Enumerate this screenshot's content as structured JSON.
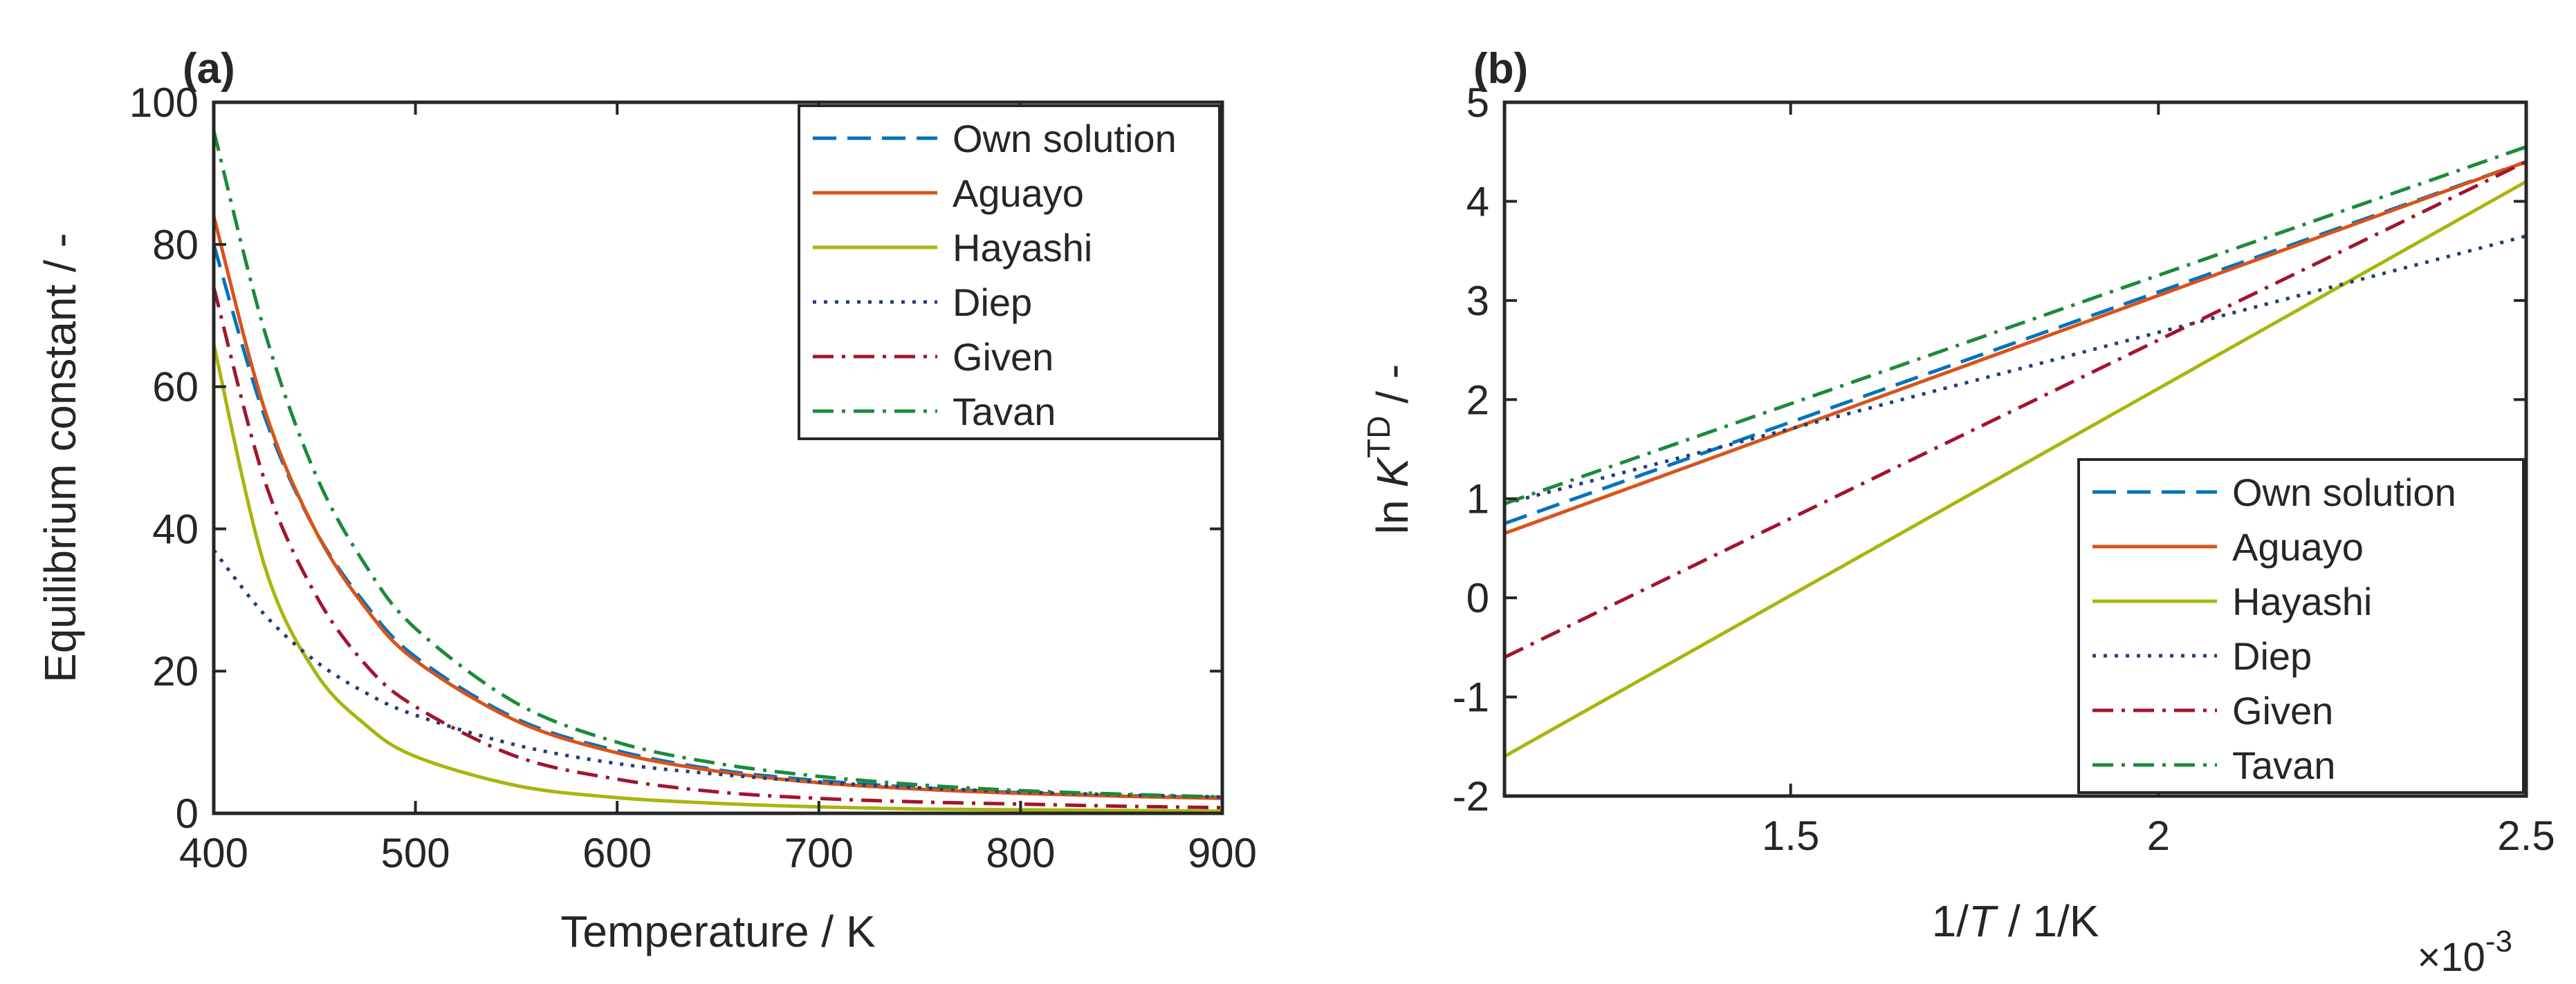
{
  "chart_data": [
    {
      "type": "line",
      "panel_label": "a",
      "title": "",
      "xlabel": "Temperature / K",
      "ylabel": "Equilibrium constant / -",
      "xlim": [
        400,
        900
      ],
      "ylim": [
        0,
        100
      ],
      "xticks": [
        400,
        500,
        600,
        700,
        800,
        900
      ],
      "yticks": [
        0,
        20,
        40,
        60,
        80,
        100
      ],
      "grid": false,
      "legend_position": "top-right",
      "x": [
        400,
        425,
        450,
        475,
        500,
        550,
        600,
        650,
        700,
        750,
        800,
        850,
        900
      ],
      "series": [
        {
          "name": "Own solution",
          "color": "#0072BD",
          "style": "dashed",
          "values": [
            80.0,
            56.0,
            40.0,
            29.5,
            22.0,
            13.3,
            8.8,
            6.1,
            4.6,
            3.6,
            2.9,
            2.5,
            2.2
          ]
        },
        {
          "name": "Aguayo",
          "color": "#D95319",
          "style": "solid",
          "values": [
            84.0,
            57.0,
            40.0,
            29.0,
            21.5,
            13.0,
            8.5,
            5.9,
            4.3,
            3.4,
            2.8,
            2.4,
            2.1
          ]
        },
        {
          "name": "Hayashi",
          "color": "#A8B50D",
          "style": "solid",
          "values": [
            66.0,
            35.0,
            20.0,
            12.5,
            8.0,
            3.9,
            2.2,
            1.4,
            0.9,
            0.6,
            0.5,
            0.4,
            0.3
          ]
        },
        {
          "name": "Diep",
          "color": "#1F3D7A",
          "style": "dotted",
          "values": [
            37.0,
            28.0,
            21.5,
            17.0,
            13.8,
            9.6,
            7.0,
            5.5,
            4.4,
            3.6,
            3.0,
            2.6,
            2.3
          ]
        },
        {
          "name": "Given",
          "color": "#A2142F",
          "style": "dashdot",
          "values": [
            74.0,
            47.0,
            31.0,
            21.0,
            15.0,
            8.0,
            4.8,
            3.0,
            2.1,
            1.6,
            1.3,
            1.0,
            0.8
          ]
        },
        {
          "name": "Tavan",
          "color": "#1B8A3A",
          "style": "dashdot",
          "values": [
            96.0,
            68.0,
            48.0,
            35.0,
            26.0,
            15.5,
            10.0,
            7.0,
            5.2,
            4.0,
            3.2,
            2.7,
            2.3
          ]
        }
      ]
    },
    {
      "type": "line",
      "panel_label": "b",
      "title": "",
      "xlabel_parts": [
        "1/",
        "T",
        " / 1/K"
      ],
      "ylabel_parts": [
        "ln ",
        "K",
        "TD",
        " / -"
      ],
      "x_multiplier": "×10",
      "x_multiplier_exp": "-3",
      "xlim": [
        1.111,
        2.5
      ],
      "ylim": [
        -2,
        5
      ],
      "xticks": [
        1.5,
        2,
        2.5
      ],
      "xtick_labels": [
        "1.5",
        "2",
        "2.5"
      ],
      "yticks": [
        -2,
        -1,
        0,
        1,
        2,
        3,
        4,
        5
      ],
      "grid": false,
      "legend_position": "bottom-right",
      "x": [
        1.111,
        2.5
      ],
      "series": [
        {
          "name": "Own solution",
          "color": "#0072BD",
          "style": "dashed",
          "values": [
            0.75,
            4.4
          ]
        },
        {
          "name": "Aguayo",
          "color": "#D95319",
          "style": "solid",
          "values": [
            0.65,
            4.4
          ]
        },
        {
          "name": "Hayashi",
          "color": "#A8B50D",
          "style": "solid",
          "values": [
            -1.6,
            4.2
          ]
        },
        {
          "name": "Diep",
          "color": "#1F3D7A",
          "style": "dotted",
          "values": [
            0.95,
            3.65
          ]
        },
        {
          "name": "Given",
          "color": "#A2142F",
          "style": "dashdot",
          "values": [
            -0.6,
            4.4
          ]
        },
        {
          "name": "Tavan",
          "color": "#1B8A3A",
          "style": "dashdot",
          "values": [
            0.95,
            4.55
          ]
        }
      ]
    }
  ]
}
